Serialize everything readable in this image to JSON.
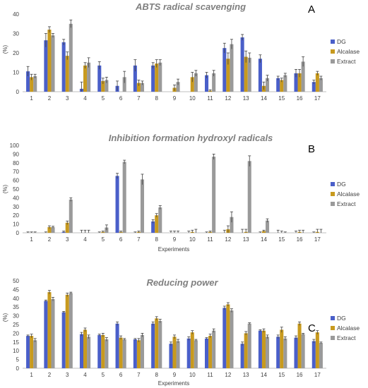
{
  "colors": {
    "DG": "#4a5fc9",
    "Alcalase": "#c89a1e",
    "Extract": "#9a9a9a"
  },
  "chart_data": [
    {
      "type": "bar",
      "title": "ABTS radical scavenging",
      "panel": "A",
      "xlabel": "",
      "ylabel": "(%)",
      "ylim": [
        0,
        40
      ],
      "yticks": [
        0,
        10,
        20,
        30,
        40
      ],
      "categories": [
        "1",
        "2",
        "3",
        "4",
        "5",
        "6",
        "7",
        "8",
        "9",
        "10",
        "11",
        "12",
        "13",
        "14",
        "15",
        "16",
        "17"
      ],
      "legend": "right",
      "series": [
        {
          "name": "DG",
          "values": [
            10.5,
            26.5,
            25.5,
            1.5,
            13.5,
            3,
            13.5,
            13.5,
            0,
            0,
            8.5,
            22.5,
            28,
            17,
            7,
            9.5,
            5
          ],
          "errors": [
            2.5,
            3.5,
            1.5,
            3.5,
            2,
            2.5,
            3,
            1.5,
            0,
            0,
            1.5,
            2.5,
            1.5,
            2,
            1,
            2,
            1
          ]
        },
        {
          "name": "Alcalase",
          "values": [
            7.5,
            32,
            18.5,
            13.5,
            5.5,
            0,
            4.5,
            14.5,
            2,
            7.5,
            0.5,
            17,
            18,
            3,
            6,
            9.5,
            9.5
          ],
          "errors": [
            1.5,
            1.5,
            2,
            1.5,
            1.5,
            0,
            1.5,
            2,
            1.5,
            2.5,
            0.5,
            3,
            3,
            2,
            1,
            2,
            1
          ]
        },
        {
          "name": "Extract",
          "values": [
            8,
            29,
            35,
            15,
            6,
            7.5,
            4.5,
            15,
            5,
            9.5,
            9.5,
            24.5,
            17.5,
            7,
            8.5,
            15.5,
            7
          ],
          "errors": [
            1,
            1,
            2,
            2.5,
            1.5,
            3,
            1,
            1.5,
            1.5,
            1.5,
            1.5,
            2.5,
            2.5,
            1.5,
            1,
            2.5,
            1
          ]
        }
      ]
    },
    {
      "type": "bar",
      "title": "Inhibition formation hydroxyl radicals",
      "panel": "B",
      "xlabel": "Experiments",
      "ylabel": "(%)",
      "ylim": [
        0,
        100
      ],
      "yticks": [
        0,
        10,
        20,
        30,
        40,
        50,
        60,
        70,
        80,
        90,
        100
      ],
      "categories": [
        "1",
        "2",
        "3",
        "4",
        "5",
        "6",
        "7",
        "8",
        "9",
        "10",
        "11",
        "12",
        "13",
        "14",
        "15",
        "16",
        "17"
      ],
      "legend": "right",
      "series": [
        {
          "name": "DG",
          "values": [
            0,
            0,
            1,
            0,
            0,
            65,
            0,
            13,
            0,
            0,
            0,
            0,
            0,
            0,
            0,
            0,
            0
          ],
          "errors": [
            1,
            1,
            1,
            3,
            1,
            3,
            1,
            2,
            2,
            2,
            1,
            3,
            4,
            1,
            3,
            2,
            1
          ]
        },
        {
          "name": "Alcalase",
          "values": [
            0,
            6.5,
            11.5,
            0,
            1,
            1,
            1,
            20,
            0,
            1,
            1,
            4,
            1,
            2,
            0,
            1,
            1
          ],
          "errors": [
            1,
            1.5,
            2,
            3,
            1,
            1,
            1,
            2,
            2,
            2,
            1,
            4,
            3,
            1,
            2,
            2,
            3
          ]
        },
        {
          "name": "Extract",
          "values": [
            0,
            6.5,
            38,
            0,
            6,
            81,
            61,
            29,
            0,
            0,
            87,
            18,
            82,
            14,
            0,
            0,
            0
          ],
          "errors": [
            1,
            1,
            2,
            3,
            3,
            2,
            6,
            2,
            2,
            4,
            3,
            6,
            6,
            2,
            1,
            3,
            4
          ]
        }
      ]
    },
    {
      "type": "bar",
      "title": "Reducing power",
      "panel": "C",
      "xlabel": "Experiments",
      "ylabel": "(%)",
      "ylim": [
        0,
        50
      ],
      "yticks": [
        0,
        5,
        10,
        15,
        20,
        25,
        30,
        35,
        40,
        45,
        50
      ],
      "categories": [
        "1",
        "2",
        "3",
        "4",
        "5",
        "6",
        "7",
        "8",
        "9",
        "10",
        "11",
        "12",
        "13",
        "14",
        "15",
        "16",
        "17"
      ],
      "legend": "right",
      "series": [
        {
          "name": "DG",
          "values": [
            18.5,
            38.5,
            32,
            19.5,
            19,
            25.5,
            16.5,
            25.5,
            14,
            17,
            17,
            34.5,
            14,
            21.5,
            18,
            17.5,
            15.5
          ],
          "errors": [
            0.5,
            0.5,
            0.5,
            1,
            0.5,
            1,
            0.5,
            1,
            1,
            1,
            0.5,
            1,
            1,
            0.5,
            1,
            1,
            1
          ]
        },
        {
          "name": "Alcalase",
          "values": [
            18.5,
            43.5,
            42,
            22,
            19,
            17.5,
            16,
            28.5,
            18,
            20.5,
            18.5,
            36.5,
            20,
            21.5,
            22,
            25.5,
            20.5
          ],
          "errors": [
            1,
            1,
            1,
            1,
            1,
            1,
            1,
            1,
            1,
            1,
            1,
            1,
            1,
            1,
            1.5,
            1,
            1
          ]
        },
        {
          "name": "Extract",
          "values": [
            16,
            39.5,
            43,
            18,
            16.5,
            16.5,
            19,
            27,
            15.5,
            16,
            21.5,
            33,
            25.5,
            18,
            17,
            19.5,
            14.5
          ],
          "errors": [
            1,
            1,
            0.5,
            1,
            1,
            0.5,
            1,
            1,
            1,
            0.5,
            1,
            1,
            0.5,
            1,
            1,
            0.5,
            0.5
          ]
        }
      ]
    }
  ]
}
